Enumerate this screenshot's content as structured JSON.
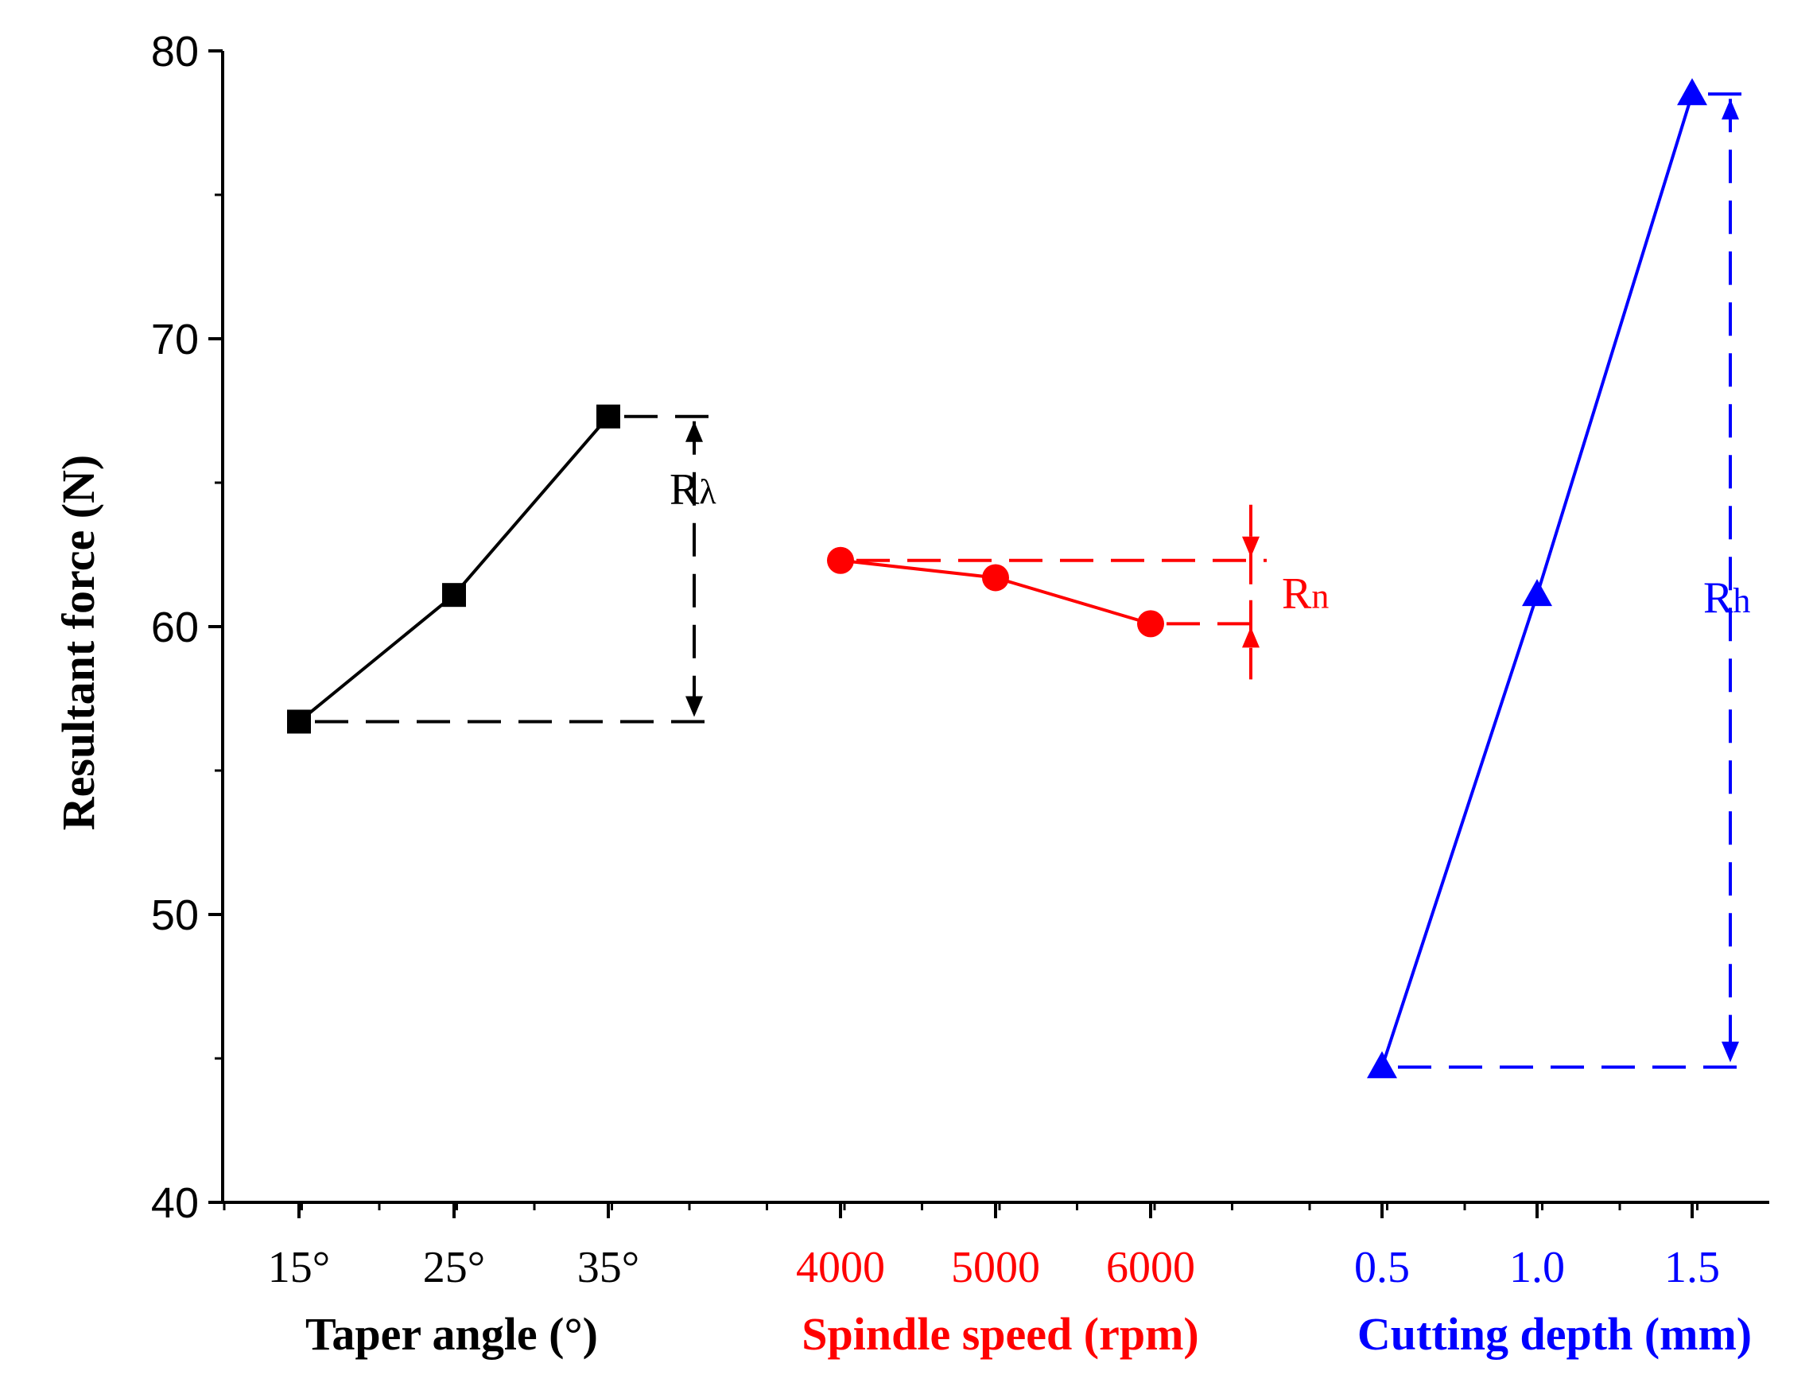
{
  "chart_data": {
    "type": "line",
    "ylabel": "Resultant force (N)",
    "ylim": [
      40,
      80
    ],
    "yticks": [
      "40",
      "50",
      "60",
      "70",
      "80"
    ],
    "series": [
      {
        "name": "Taper angle",
        "xlabel": "Taper angle (°)",
        "categories": [
          "15°",
          "25°",
          "35°"
        ],
        "values": [
          56.7,
          61.1,
          67.3
        ],
        "color": "#000000",
        "marker": "square",
        "range_label": {
          "main": "R",
          "sub": "λ"
        }
      },
      {
        "name": "Spindle speed",
        "xlabel": "Spindle speed (rpm)",
        "categories": [
          "4000",
          "5000",
          "6000"
        ],
        "values": [
          62.3,
          61.7,
          60.1
        ],
        "color": "#ff0000",
        "marker": "circle",
        "range_label": {
          "main": "R",
          "sub": "n"
        }
      },
      {
        "name": "Cutting depth",
        "xlabel": "Cutting depth (mm)",
        "categories": [
          "0.5",
          "1.0",
          "1.5"
        ],
        "values": [
          44.7,
          61.1,
          78.5
        ],
        "color": "#0000ff",
        "marker": "triangle",
        "range_label": {
          "main": "R",
          "sub": "h"
        }
      }
    ]
  }
}
